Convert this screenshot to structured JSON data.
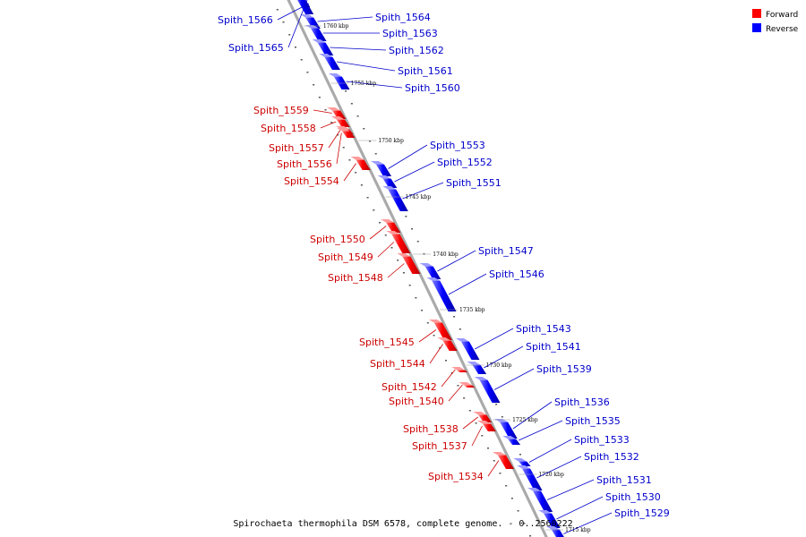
{
  "caption": "Spirochaeta thermophila DSM 6578, complete genome. - 0..2560222",
  "legend": {
    "forward": {
      "label": "Forward",
      "color": "#ff0000"
    },
    "reverse": {
      "label": "Reverse",
      "color": "#0000ff"
    }
  },
  "colors": {
    "forward_label": "#cc0000",
    "reverse_label": "#0000cc",
    "axis": "#888888"
  },
  "kbp_marks": [
    "1760 kbp",
    "1755 kbp",
    "1750 kbp",
    "1745 kbp",
    "1740 kbp",
    "1735 kbp",
    "1730 kbp",
    "1725 kbp",
    "1720 kbp",
    "1715 kbp"
  ],
  "genes": [
    {
      "name": "Spith_1566",
      "strand": "reverse"
    },
    {
      "name": "Spith_1565",
      "strand": "reverse"
    },
    {
      "name": "Spith_1564",
      "strand": "reverse"
    },
    {
      "name": "Spith_1563",
      "strand": "reverse"
    },
    {
      "name": "Spith_1562",
      "strand": "reverse"
    },
    {
      "name": "Spith_1561",
      "strand": "reverse"
    },
    {
      "name": "Spith_1560",
      "strand": "reverse"
    },
    {
      "name": "Spith_1559",
      "strand": "forward"
    },
    {
      "name": "Spith_1558",
      "strand": "forward"
    },
    {
      "name": "Spith_1557",
      "strand": "forward"
    },
    {
      "name": "Spith_1556",
      "strand": "forward"
    },
    {
      "name": "Spith_1554",
      "strand": "forward"
    },
    {
      "name": "Spith_1553",
      "strand": "reverse"
    },
    {
      "name": "Spith_1552",
      "strand": "reverse"
    },
    {
      "name": "Spith_1551",
      "strand": "reverse"
    },
    {
      "name": "Spith_1550",
      "strand": "forward"
    },
    {
      "name": "Spith_1549",
      "strand": "forward"
    },
    {
      "name": "Spith_1548",
      "strand": "forward"
    },
    {
      "name": "Spith_1547",
      "strand": "reverse"
    },
    {
      "name": "Spith_1546",
      "strand": "reverse"
    },
    {
      "name": "Spith_1545",
      "strand": "forward"
    },
    {
      "name": "Spith_1544",
      "strand": "forward"
    },
    {
      "name": "Spith_1543",
      "strand": "reverse"
    },
    {
      "name": "Spith_1541",
      "strand": "reverse"
    },
    {
      "name": "Spith_1542",
      "strand": "forward"
    },
    {
      "name": "Spith_1540",
      "strand": "forward"
    },
    {
      "name": "Spith_1539",
      "strand": "reverse"
    },
    {
      "name": "Spith_1538",
      "strand": "forward"
    },
    {
      "name": "Spith_1537",
      "strand": "forward"
    },
    {
      "name": "Spith_1536",
      "strand": "reverse"
    },
    {
      "name": "Spith_1535",
      "strand": "reverse"
    },
    {
      "name": "Spith_1534",
      "strand": "forward"
    },
    {
      "name": "Spith_1533",
      "strand": "reverse"
    },
    {
      "name": "Spith_1532",
      "strand": "reverse"
    },
    {
      "name": "Spith_1531",
      "strand": "reverse"
    },
    {
      "name": "Spith_1530",
      "strand": "reverse"
    },
    {
      "name": "Spith_1529",
      "strand": "reverse"
    }
  ]
}
